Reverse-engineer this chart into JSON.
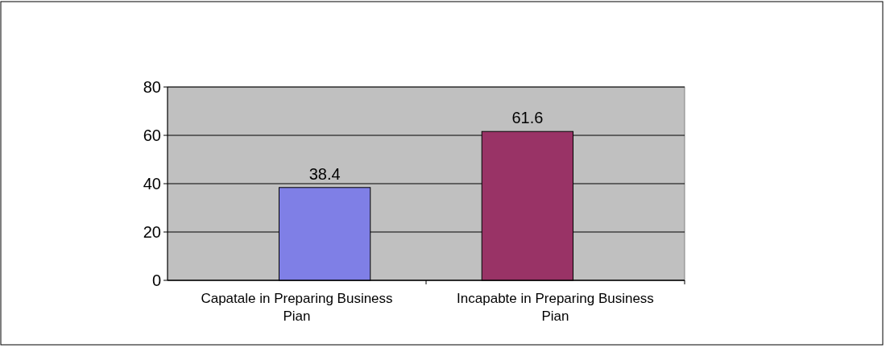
{
  "chart_data": {
    "type": "bar",
    "categories": [
      "Capatale in Preparing Business Pian",
      "Incapabte in Preparing Business Pian"
    ],
    "values": [
      38.4,
      61.6
    ],
    "colors": [
      "#7f7fe6",
      "#993366"
    ],
    "ylim": [
      0,
      80
    ],
    "yticks": [
      0,
      20,
      40,
      60,
      80
    ],
    "grid": "y",
    "data_labels": true
  }
}
